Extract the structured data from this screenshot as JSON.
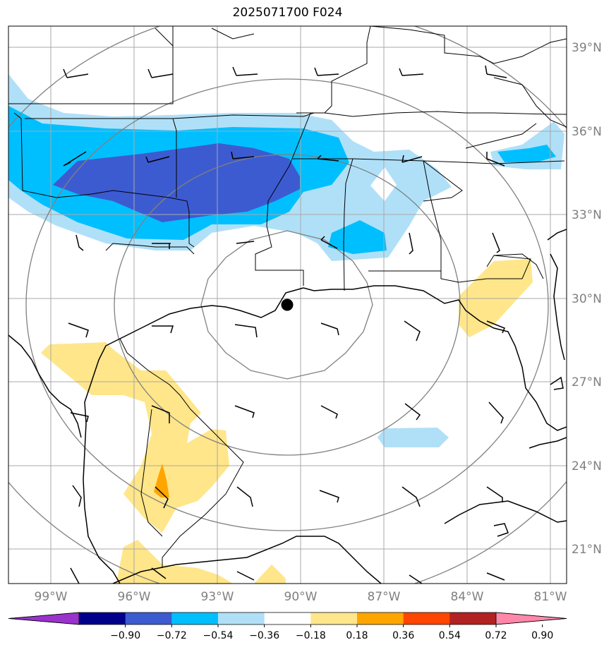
{
  "title": "2025071700 F024",
  "lat_labels": [
    "39°N",
    "36°N",
    "33°N",
    "30°N",
    "27°N",
    "24°N",
    "21°N"
  ],
  "lon_labels": [
    "99°W",
    "96°W",
    "93°W",
    "90°W",
    "87°W",
    "84°W",
    "81°W"
  ],
  "colorbar": {
    "ticks": [
      "−0.90",
      "−0.72",
      "−0.54",
      "−0.36",
      "−0.18",
      "0.18",
      "0.36",
      "0.54",
      "0.72",
      "0.90"
    ],
    "colors": [
      "#9933cc",
      "#00008b",
      "#3d5bd0",
      "#00bfff",
      "#b0e0f8",
      "#ffffff",
      "#ffe68a",
      "#ffa500",
      "#ff4500",
      "#b22222",
      "#ff88aa"
    ]
  },
  "center_marker": {
    "lat": 29.8,
    "lon": -90.3
  }
}
